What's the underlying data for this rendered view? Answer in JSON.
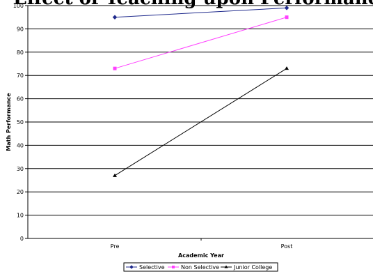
{
  "chart_data": {
    "type": "line",
    "title": "Effect of Teaching upon Performance",
    "xlabel": "Academic Year",
    "ylabel": "Math Performance",
    "categories": [
      "Pre",
      "Post"
    ],
    "ylim": [
      0,
      100
    ],
    "yticks": [
      0,
      10,
      20,
      30,
      40,
      50,
      60,
      70,
      80,
      90,
      100
    ],
    "grid": true,
    "legend_position": "bottom",
    "series": [
      {
        "name": "Selective",
        "values": [
          95,
          99
        ],
        "color": "#1f2a8c",
        "marker": "diamond"
      },
      {
        "name": "Non Selective",
        "values": [
          73,
          95
        ],
        "color": "#ff40ff",
        "marker": "square"
      },
      {
        "name": "Junior College",
        "values": [
          27,
          73
        ],
        "color": "#000000",
        "marker": "triangle"
      }
    ]
  }
}
